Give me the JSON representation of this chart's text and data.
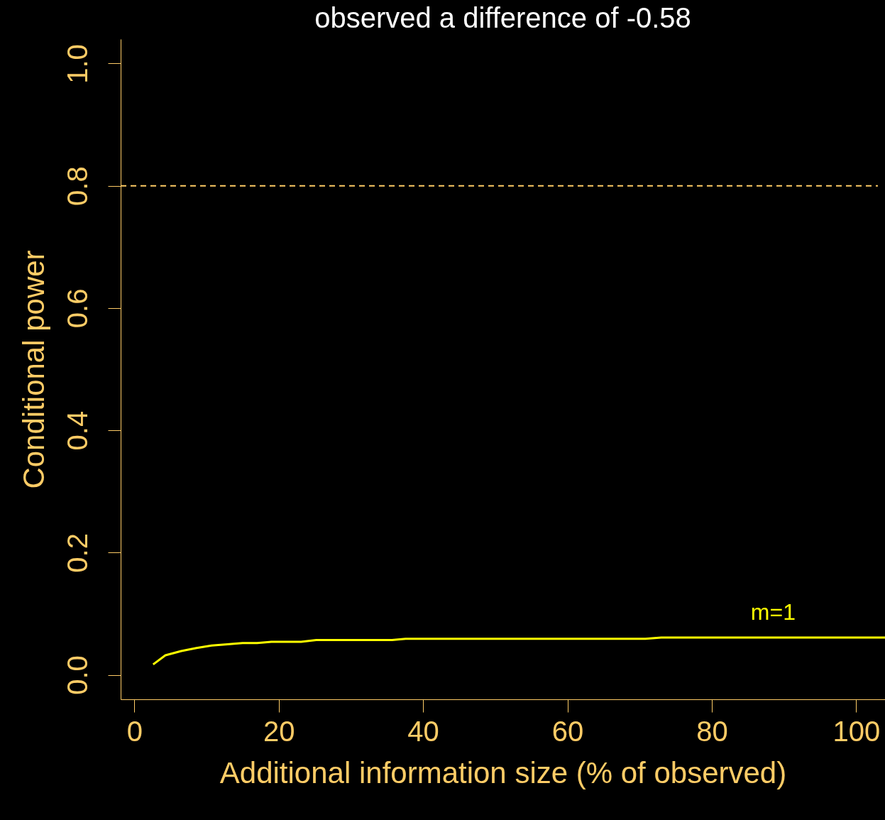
{
  "chart_data": {
    "type": "line",
    "title": "observed a difference of -0.58",
    "xlabel": "Additional information size (% of observed)",
    "ylabel": "Conditional power",
    "series": [
      {
        "name": "m=1",
        "color": "#ffff00",
        "x": [
          2.6,
          4.3,
          6.5,
          8.6,
          10.7,
          12.9,
          15.0,
          17.0,
          19.0,
          23.1,
          25.2,
          35.7,
          37.6,
          70.8,
          73.0,
          104
        ],
        "values": [
          0.017,
          0.032,
          0.039,
          0.044,
          0.048,
          0.05,
          0.052,
          0.052,
          0.054,
          0.054,
          0.057,
          0.057,
          0.059,
          0.059,
          0.061,
          0.061
        ]
      }
    ],
    "ref_lines": [
      {
        "axis": "y",
        "value": 0.8,
        "color": "#ffcc66",
        "line_style": "dashed"
      }
    ],
    "xlim": [
      -1.9,
      104
    ],
    "ylim": [
      -0.04,
      1.04
    ],
    "xticks": [
      0,
      20,
      40,
      60,
      80,
      100
    ],
    "yticks": [
      {
        "value": 0,
        "label": "0.0"
      },
      0.2,
      0.4,
      0.6,
      0.8,
      {
        "value": 1,
        "label": "1.0"
      }
    ],
    "marker": "none",
    "line_style": "solid"
  }
}
